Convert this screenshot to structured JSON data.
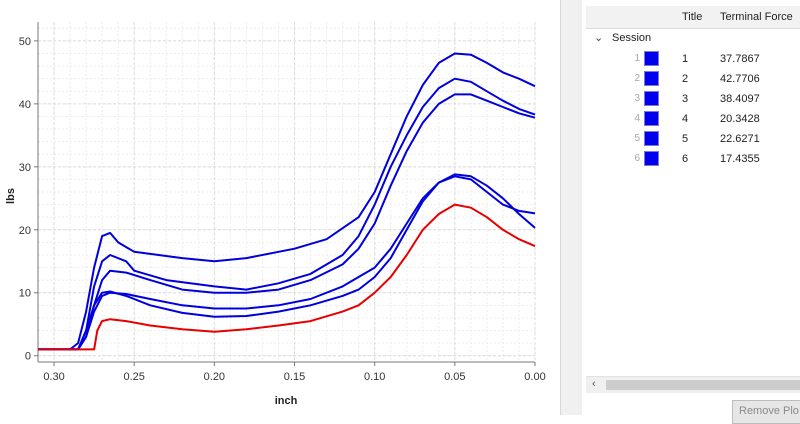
{
  "chart_data": {
    "type": "line",
    "title": "",
    "xlabel": "inch",
    "ylabel": "lbs",
    "xlim": [
      0.31,
      0.0
    ],
    "ylim": [
      -1,
      53
    ],
    "x_reversed": true,
    "grid": true,
    "xticks": [
      "0.30",
      "0.25",
      "0.20",
      "0.15",
      "0.10",
      "0.05",
      "0.00"
    ],
    "yticks": [
      "0",
      "10",
      "20",
      "30",
      "40",
      "50"
    ],
    "series": [
      {
        "color": "#0000dd",
        "points": [
          [
            0.31,
            1
          ],
          [
            0.29,
            1
          ],
          [
            0.285,
            2
          ],
          [
            0.28,
            7
          ],
          [
            0.275,
            14
          ],
          [
            0.27,
            19
          ],
          [
            0.265,
            19.5
          ],
          [
            0.26,
            18
          ],
          [
            0.25,
            16.5
          ],
          [
            0.22,
            15.5
          ],
          [
            0.2,
            15
          ],
          [
            0.18,
            15.5
          ],
          [
            0.15,
            17
          ],
          [
            0.13,
            18.5
          ],
          [
            0.11,
            22
          ],
          [
            0.1,
            26
          ],
          [
            0.09,
            32
          ],
          [
            0.08,
            38
          ],
          [
            0.07,
            43
          ],
          [
            0.06,
            46.5
          ],
          [
            0.05,
            48
          ],
          [
            0.04,
            47.8
          ],
          [
            0.03,
            46.5
          ],
          [
            0.02,
            45
          ],
          [
            0.01,
            44
          ],
          [
            0.0,
            42.8
          ]
        ]
      },
      {
        "color": "#0000dd",
        "points": [
          [
            0.31,
            1
          ],
          [
            0.285,
            1
          ],
          [
            0.28,
            4
          ],
          [
            0.275,
            11
          ],
          [
            0.27,
            15
          ],
          [
            0.265,
            16
          ],
          [
            0.255,
            15
          ],
          [
            0.25,
            13.5
          ],
          [
            0.23,
            12
          ],
          [
            0.2,
            11
          ],
          [
            0.18,
            10.5
          ],
          [
            0.16,
            11.5
          ],
          [
            0.14,
            13
          ],
          [
            0.12,
            16
          ],
          [
            0.11,
            19
          ],
          [
            0.1,
            24
          ],
          [
            0.09,
            30
          ],
          [
            0.08,
            35
          ],
          [
            0.07,
            39.5
          ],
          [
            0.06,
            42.5
          ],
          [
            0.05,
            44
          ],
          [
            0.04,
            43.5
          ],
          [
            0.03,
            42
          ],
          [
            0.02,
            40.5
          ],
          [
            0.01,
            39.2
          ],
          [
            0.0,
            38.3
          ]
        ]
      },
      {
        "color": "#0000dd",
        "points": [
          [
            0.31,
            1
          ],
          [
            0.285,
            1
          ],
          [
            0.28,
            3
          ],
          [
            0.275,
            8
          ],
          [
            0.27,
            12
          ],
          [
            0.265,
            13.5
          ],
          [
            0.255,
            13.2
          ],
          [
            0.24,
            12
          ],
          [
            0.22,
            10.5
          ],
          [
            0.2,
            10
          ],
          [
            0.18,
            10
          ],
          [
            0.16,
            10.5
          ],
          [
            0.14,
            12
          ],
          [
            0.12,
            14.5
          ],
          [
            0.11,
            17
          ],
          [
            0.1,
            21
          ],
          [
            0.09,
            27
          ],
          [
            0.08,
            32.5
          ],
          [
            0.07,
            37
          ],
          [
            0.06,
            40
          ],
          [
            0.05,
            41.5
          ],
          [
            0.04,
            41.5
          ],
          [
            0.03,
            40.5
          ],
          [
            0.02,
            39.5
          ],
          [
            0.01,
            38.5
          ],
          [
            0.0,
            37.8
          ]
        ]
      },
      {
        "color": "#0000dd",
        "points": [
          [
            0.31,
            1
          ],
          [
            0.285,
            1
          ],
          [
            0.28,
            3
          ],
          [
            0.275,
            7
          ],
          [
            0.27,
            9.5
          ],
          [
            0.265,
            10
          ],
          [
            0.255,
            9.8
          ],
          [
            0.24,
            9
          ],
          [
            0.22,
            8
          ],
          [
            0.2,
            7.5
          ],
          [
            0.18,
            7.5
          ],
          [
            0.16,
            8
          ],
          [
            0.14,
            9
          ],
          [
            0.12,
            11
          ],
          [
            0.11,
            12.5
          ],
          [
            0.1,
            14
          ],
          [
            0.09,
            17
          ],
          [
            0.08,
            21
          ],
          [
            0.07,
            25
          ],
          [
            0.06,
            27.5
          ],
          [
            0.05,
            28.5
          ],
          [
            0.04,
            28
          ],
          [
            0.03,
            26
          ],
          [
            0.02,
            24
          ],
          [
            0.01,
            23
          ],
          [
            0.0,
            22.6
          ]
        ]
      },
      {
        "color": "#0000dd",
        "points": [
          [
            0.31,
            1
          ],
          [
            0.285,
            1
          ],
          [
            0.28,
            4
          ],
          [
            0.275,
            8
          ],
          [
            0.27,
            10
          ],
          [
            0.265,
            10.2
          ],
          [
            0.255,
            9.5
          ],
          [
            0.24,
            8
          ],
          [
            0.22,
            6.8
          ],
          [
            0.2,
            6.2
          ],
          [
            0.18,
            6.3
          ],
          [
            0.16,
            7
          ],
          [
            0.14,
            8
          ],
          [
            0.12,
            9.5
          ],
          [
            0.11,
            10.5
          ],
          [
            0.1,
            12.5
          ],
          [
            0.09,
            15.5
          ],
          [
            0.08,
            20
          ],
          [
            0.07,
            24.5
          ],
          [
            0.06,
            27.5
          ],
          [
            0.05,
            28.8
          ],
          [
            0.04,
            28.5
          ],
          [
            0.03,
            27
          ],
          [
            0.02,
            25
          ],
          [
            0.01,
            22.5
          ],
          [
            0.0,
            20.3
          ]
        ]
      },
      {
        "color": "#e60000",
        "points": [
          [
            0.31,
            1
          ],
          [
            0.275,
            1
          ],
          [
            0.273,
            4
          ],
          [
            0.27,
            5.5
          ],
          [
            0.265,
            5.8
          ],
          [
            0.255,
            5.5
          ],
          [
            0.24,
            4.8
          ],
          [
            0.22,
            4.2
          ],
          [
            0.2,
            3.8
          ],
          [
            0.18,
            4.2
          ],
          [
            0.16,
            4.8
          ],
          [
            0.14,
            5.5
          ],
          [
            0.12,
            7
          ],
          [
            0.11,
            8
          ],
          [
            0.1,
            10
          ],
          [
            0.09,
            12.5
          ],
          [
            0.08,
            16
          ],
          [
            0.07,
            20
          ],
          [
            0.06,
            22.5
          ],
          [
            0.05,
            24
          ],
          [
            0.04,
            23.5
          ],
          [
            0.03,
            22
          ],
          [
            0.02,
            20
          ],
          [
            0.01,
            18.5
          ],
          [
            0.0,
            17.4
          ]
        ]
      }
    ]
  },
  "table": {
    "headers": {
      "title": "Title",
      "terminal_force": "Terminal Force"
    },
    "group": {
      "label": "Session",
      "chevron": "⌄"
    },
    "rows": [
      {
        "index": "1",
        "title": "1",
        "force": "37.7867",
        "color": "#0000ee"
      },
      {
        "index": "2",
        "title": "2",
        "force": "42.7706",
        "color": "#0000ee"
      },
      {
        "index": "3",
        "title": "3",
        "force": "38.4097",
        "color": "#0000ee"
      },
      {
        "index": "4",
        "title": "4",
        "force": "20.3428",
        "color": "#0000ee"
      },
      {
        "index": "5",
        "title": "5",
        "force": "22.6271",
        "color": "#0000ee"
      },
      {
        "index": "6",
        "title": "6",
        "force": "17.4355",
        "color": "#0000ee"
      }
    ]
  },
  "scrollbar": {
    "left_arrow": "‹"
  },
  "buttons": {
    "remove_plot": "Remove Plo"
  }
}
